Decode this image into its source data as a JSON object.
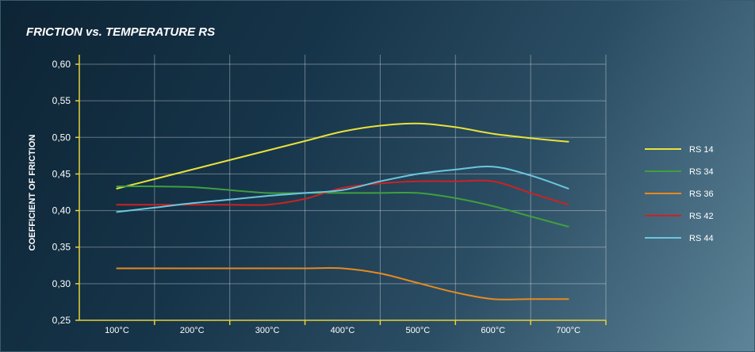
{
  "chart_data": {
    "type": "line",
    "title": "FRICTION vs. TEMPERATURE RS",
    "xlabel": "",
    "ylabel": "COEFFICIENT OF FRICTION",
    "categories": [
      "100°C",
      "200°C",
      "300°C",
      "400°C",
      "500°C",
      "600°C",
      "700°C"
    ],
    "x": [
      100,
      150,
      200,
      250,
      300,
      350,
      400,
      450,
      500,
      550,
      600,
      650,
      700
    ],
    "ylim": [
      0.25,
      0.6
    ],
    "yticks": [
      "0,25",
      "0,30",
      "0,35",
      "0,40",
      "0,45",
      "0,50",
      "0,55",
      "0,60"
    ],
    "grid": true,
    "legend_position": "right",
    "series": [
      {
        "name": "RS 14",
        "color": "#e8e23a",
        "values": [
          0.43,
          0.443,
          0.456,
          0.469,
          0.482,
          0.495,
          0.508,
          0.516,
          0.519,
          0.514,
          0.505,
          0.499,
          0.494
        ]
      },
      {
        "name": "RS 34",
        "color": "#3f9f3f",
        "values": [
          0.433,
          0.433,
          0.432,
          0.428,
          0.424,
          0.424,
          0.424,
          0.424,
          0.424,
          0.417,
          0.406,
          0.392,
          0.378
        ]
      },
      {
        "name": "RS 36",
        "color": "#e8891f",
        "values": [
          0.321,
          0.321,
          0.321,
          0.321,
          0.321,
          0.321,
          0.321,
          0.314,
          0.301,
          0.288,
          0.279,
          0.279,
          0.279
        ]
      },
      {
        "name": "RS 42",
        "color": "#cc2222",
        "values": [
          0.408,
          0.408,
          0.408,
          0.408,
          0.408,
          0.416,
          0.431,
          0.437,
          0.44,
          0.44,
          0.44,
          0.424,
          0.408
        ]
      },
      {
        "name": "RS 44",
        "color": "#6cc6df",
        "values": [
          0.398,
          0.404,
          0.41,
          0.415,
          0.42,
          0.424,
          0.428,
          0.44,
          0.45,
          0.456,
          0.46,
          0.448,
          0.43
        ]
      }
    ]
  }
}
